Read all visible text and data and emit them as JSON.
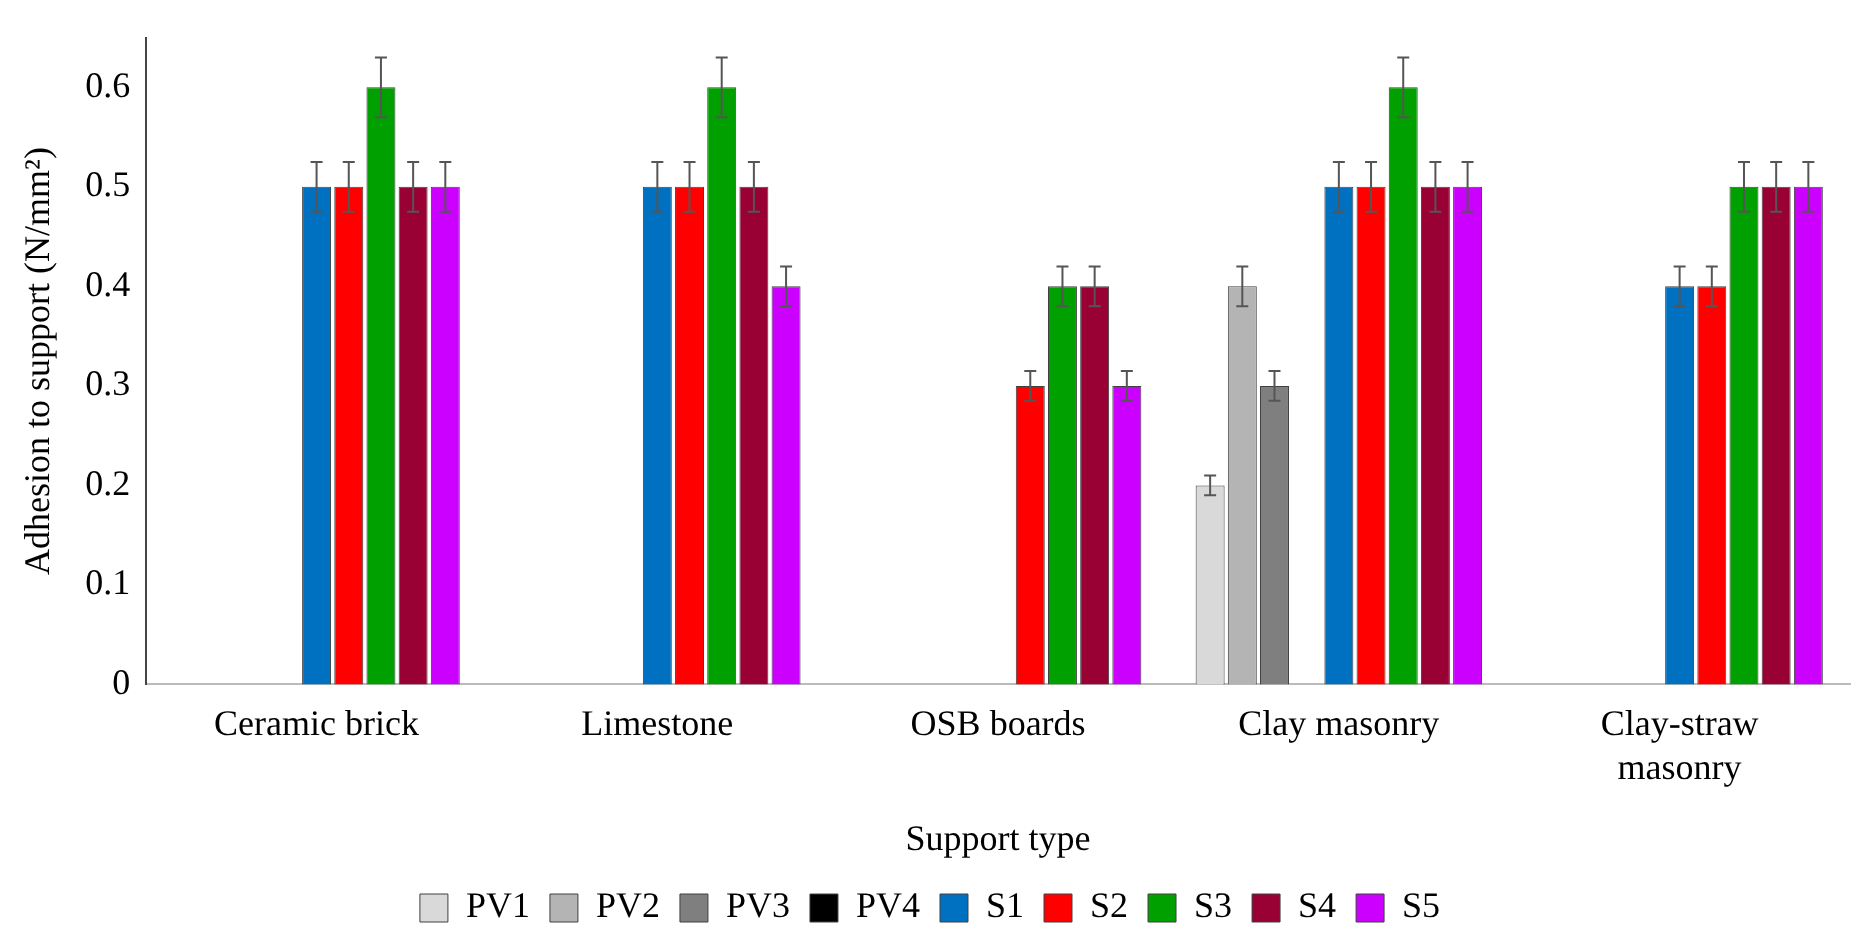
{
  "chart_data": {
    "type": "bar",
    "xlabel": "Support type",
    "ylabel": "Adhesion to support (N/mm²)",
    "categories": [
      "Ceramic brick",
      "Limestone",
      "OSB boards",
      "Clay masonry",
      "Clay-straw masonry"
    ],
    "ylim": [
      0,
      0.65
    ],
    "yticks": [
      0,
      0.1,
      0.2,
      0.3,
      0.4,
      0.5,
      0.6
    ],
    "grid": false,
    "legend": "bottom",
    "series": [
      {
        "name": "PV1",
        "color": "#d9d9d9",
        "values": [
          null,
          null,
          null,
          0.2,
          null
        ],
        "errors": [
          null,
          null,
          null,
          0.01,
          null
        ]
      },
      {
        "name": "PV2",
        "color": "#b4b4b4",
        "values": [
          null,
          null,
          null,
          0.4,
          null
        ],
        "errors": [
          null,
          null,
          null,
          0.02,
          null
        ]
      },
      {
        "name": "PV3",
        "color": "#7f7f7f",
        "values": [
          null,
          null,
          null,
          0.3,
          null
        ],
        "errors": [
          null,
          null,
          null,
          0.015,
          null
        ]
      },
      {
        "name": "PV4",
        "color": "#000000",
        "values": [
          null,
          null,
          null,
          null,
          null
        ]
      },
      {
        "name": "S1",
        "color": "#0070c0",
        "values": [
          0.5,
          0.5,
          null,
          0.5,
          0.4
        ],
        "errors": [
          0.025,
          0.025,
          null,
          0.025,
          0.02
        ]
      },
      {
        "name": "S2",
        "color": "#ff0000",
        "values": [
          0.5,
          0.5,
          0.3,
          0.5,
          0.4
        ],
        "errors": [
          0.025,
          0.025,
          0.015,
          0.025,
          0.02
        ]
      },
      {
        "name": "S3",
        "color": "#00a000",
        "values": [
          0.6,
          0.6,
          0.4,
          0.6,
          0.5
        ],
        "errors": [
          0.03,
          0.03,
          0.02,
          0.03,
          0.025
        ]
      },
      {
        "name": "S4",
        "color": "#990033",
        "values": [
          0.5,
          0.5,
          0.4,
          0.5,
          0.5
        ],
        "errors": [
          0.025,
          0.025,
          0.02,
          0.025,
          0.025
        ]
      },
      {
        "name": "S5",
        "color": "#cc00ff",
        "values": [
          0.5,
          0.4,
          0.3,
          0.5,
          0.5
        ],
        "errors": [
          0.025,
          0.02,
          0.015,
          0.025,
          0.025
        ]
      }
    ]
  }
}
